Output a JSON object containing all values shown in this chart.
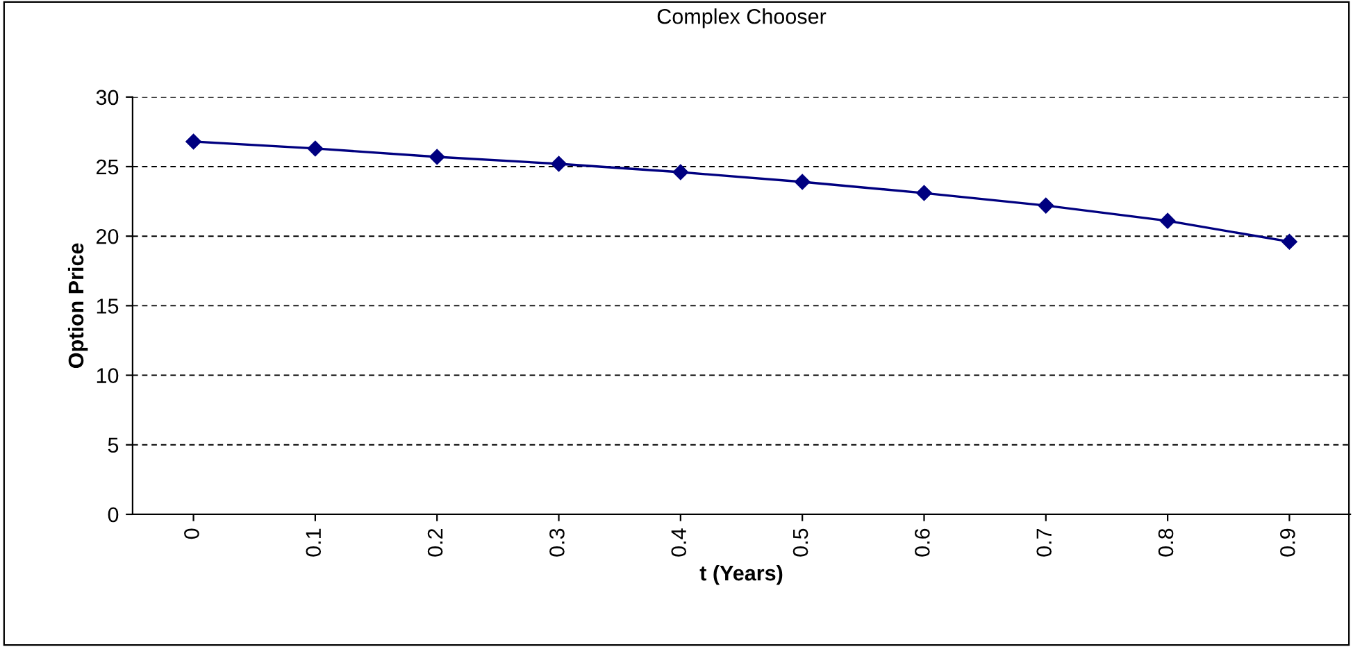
{
  "chart_data": {
    "type": "line",
    "title": "Complex Chooser",
    "xlabel": "t (Years)",
    "ylabel": "Option Price",
    "categories": [
      "0",
      "0.1",
      "0.2",
      "0.3",
      "0.4",
      "0.5",
      "0.6",
      "0.7",
      "0.8",
      "0.9"
    ],
    "series": [
      {
        "color": "#000080",
        "values": [
          26.8,
          26.3,
          25.7,
          25.2,
          24.6,
          23.9,
          23.1,
          22.2,
          21.1,
          19.6
        ]
      }
    ],
    "ylim": [
      0,
      30
    ],
    "yticks": [
      0,
      5,
      10,
      15,
      20,
      25,
      30
    ],
    "grid": "y",
    "marker": "diamond",
    "line_style": "solid",
    "legend": false
  }
}
